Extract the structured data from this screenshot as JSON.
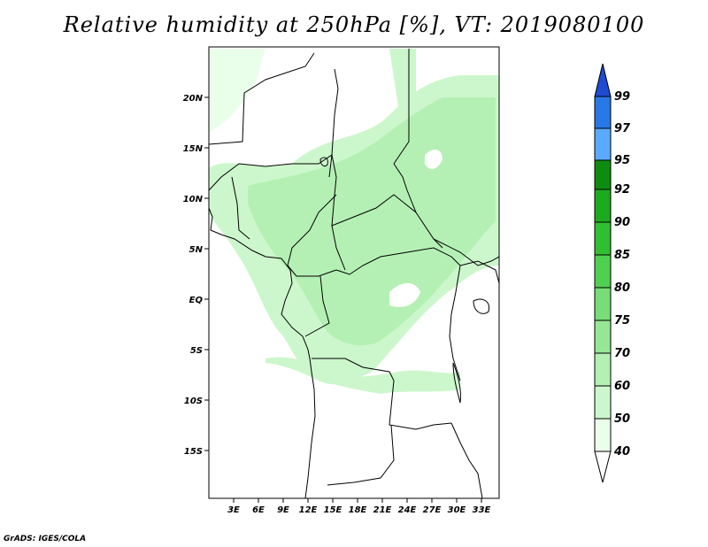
{
  "title": "Relative humidity at 250hPa [%], VT: 2019080100",
  "credit": "GrADS: IGES/COLA",
  "map": {
    "lat_labels": [
      "20N",
      "15N",
      "10N",
      "5N",
      "EQ",
      "5S",
      "10S",
      "15S"
    ],
    "lon_labels": [
      "3E",
      "6E",
      "9E",
      "12E",
      "15E",
      "18E",
      "21E",
      "24E",
      "27E",
      "30E",
      "33E"
    ]
  },
  "colorbar": {
    "levels": [
      "40",
      "50",
      "60",
      "70",
      "75",
      "80",
      "85",
      "90",
      "92",
      "95",
      "97",
      "99"
    ],
    "colors": [
      "#ffffff",
      "#eaffea",
      "#ccf7cc",
      "#b4f0b4",
      "#96e696",
      "#78dc78",
      "#50d050",
      "#32be32",
      "#1eaa1e",
      "#0f8c0f",
      "#5aaaff",
      "#2878e6",
      "#1e4bd2"
    ]
  }
}
